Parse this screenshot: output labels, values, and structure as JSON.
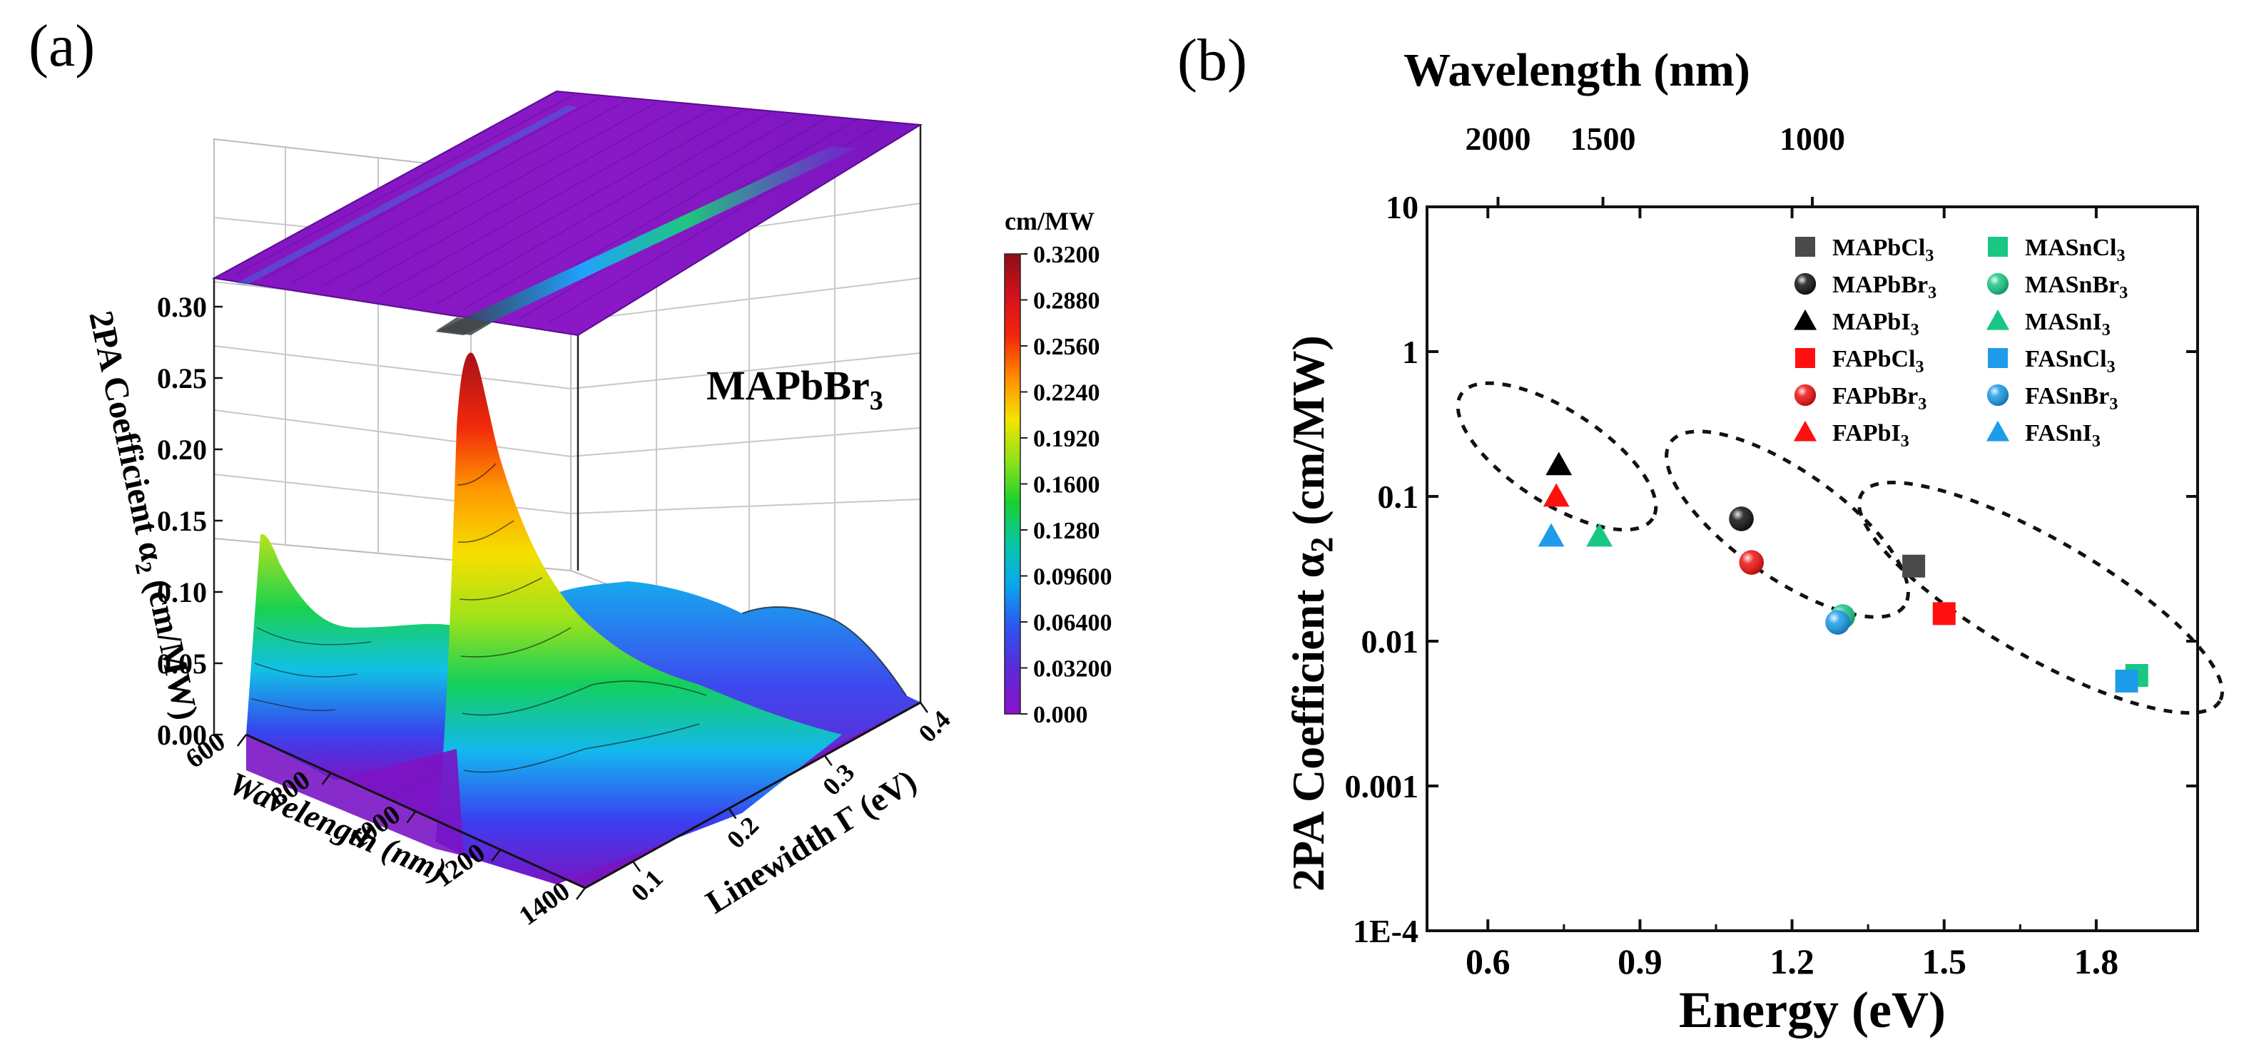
{
  "figure": {
    "panel_a_label": "(a)",
    "panel_b_label": "(b)"
  },
  "chart_data": [
    {
      "type": "surface3d",
      "panel": "a",
      "compound": "MAPbBr",
      "compound_subscript": "3",
      "zlabel_main": "2PA Coefficient α",
      "zlabel_sub": "2",
      "zlabel_unit": " (cm/MW)",
      "xlabel": "Wavelength (nm)",
      "ylabel": "Linewidth Γ (eV)",
      "z_ticks": [
        "0.00",
        "0.05",
        "0.10",
        "0.15",
        "0.20",
        "0.25",
        "0.30"
      ],
      "x_ticks": [
        "600",
        "800",
        "1000",
        "1200",
        "1400"
      ],
      "y_ticks": [
        "0.1",
        "0.2",
        "0.3",
        "0.4"
      ],
      "zlim": [
        0,
        0.32
      ],
      "xlim": [
        600,
        1400
      ],
      "ylim": [
        0.05,
        0.4
      ],
      "peaks": [
        {
          "wavelength": 620,
          "max_value": 0.15
        },
        {
          "wavelength": 1020,
          "max_value": 0.31
        }
      ],
      "colorbar": {
        "title": "cm/MW",
        "min": 0,
        "max": 0.32,
        "ticks": [
          "0.3200",
          "0.2880",
          "0.2560",
          "0.2240",
          "0.1920",
          "0.1600",
          "0.1280",
          "0.09600",
          "0.06400",
          "0.03200",
          "0.000"
        ],
        "colors": [
          "#8a0f16",
          "#d3111c",
          "#f5260a",
          "#ff8e00",
          "#f4e400",
          "#8fe21a",
          "#18d02f",
          "#08c7a6",
          "#09a7ee",
          "#2d55f0",
          "#5b2ad9",
          "#8a12c8"
        ]
      }
    },
    {
      "type": "scatter",
      "panel": "b",
      "xlabel": "Energy (eV)",
      "ylabel_main": "2PA Coefficient α",
      "ylabel_sub": "2",
      "ylabel_unit": " (cm/MW)",
      "top_label": "Wavelength (nm)",
      "xlim": [
        0.48,
        2.0
      ],
      "ylim": [
        0.0001,
        10
      ],
      "yscale": "log",
      "x_ticks": [
        0.6,
        0.9,
        1.2,
        1.5,
        1.8
      ],
      "x_tick_labels": [
        "0.6",
        "0.9",
        "1.2",
        "1.5",
        "1.8"
      ],
      "y_ticks": [
        10,
        1,
        0.1,
        0.01,
        0.001,
        0.0001
      ],
      "y_tick_labels": [
        "10",
        "1",
        "0.1",
        "0.01",
        "0.001",
        "1E-4"
      ],
      "top_ticks": [
        {
          "label": "2000",
          "energy": 0.62
        },
        {
          "label": "1500",
          "energy": 0.827
        },
        {
          "label": "1000",
          "energy": 1.24
        }
      ],
      "legend_position": "top-right",
      "series": [
        {
          "name": "MAPbCl",
          "sub": "3",
          "marker": "square",
          "color": "#4a4a4a",
          "x": 1.44,
          "y": 0.033
        },
        {
          "name": "MAPbBr",
          "sub": "3",
          "marker": "sphere",
          "color": "#111111",
          "x": 1.1,
          "y": 0.07
        },
        {
          "name": "MAPbI",
          "sub": "3",
          "marker": "triangle",
          "color": "#000000",
          "x": 0.74,
          "y": 0.165
        },
        {
          "name": "FAPbCl",
          "sub": "3",
          "marker": "square",
          "color": "#ff1010",
          "x": 1.5,
          "y": 0.0155
        },
        {
          "name": "FAPbBr",
          "sub": "3",
          "marker": "sphere",
          "color": "#ee1111",
          "x": 1.12,
          "y": 0.035
        },
        {
          "name": "FAPbI",
          "sub": "3",
          "marker": "triangle",
          "color": "#ff1010",
          "x": 0.735,
          "y": 0.1
        },
        {
          "name": "MASnCl",
          "sub": "3",
          "marker": "square",
          "color": "#18c784",
          "x": 1.88,
          "y": 0.0058
        },
        {
          "name": "MASnBr",
          "sub": "3",
          "marker": "sphere",
          "color": "#18c784",
          "x": 1.3,
          "y": 0.0148
        },
        {
          "name": "MASnI",
          "sub": "3",
          "marker": "triangle",
          "color": "#18c784",
          "x": 0.82,
          "y": 0.053
        },
        {
          "name": "FASnCl",
          "sub": "3",
          "marker": "square",
          "color": "#1e9bea",
          "x": 1.86,
          "y": 0.0053
        },
        {
          "name": "FASnBr",
          "sub": "3",
          "marker": "sphere",
          "color": "#1a9ae8",
          "x": 1.29,
          "y": 0.0135
        },
        {
          "name": "FASnI",
          "sub": "3",
          "marker": "triangle",
          "color": "#1e9bea",
          "x": 0.725,
          "y": 0.053
        }
      ]
    }
  ]
}
